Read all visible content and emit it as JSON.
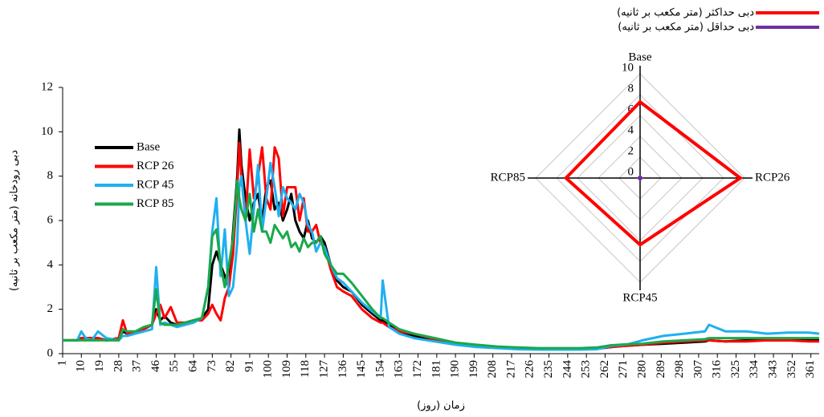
{
  "chart_data": [
    {
      "type": "line",
      "xlabel": "زمان (روز)",
      "ylabel": "دبی رودخانه (متر مکعب بر ثانیه)",
      "x": [
        1,
        8,
        10,
        12,
        15,
        18,
        22,
        28,
        30,
        32,
        36,
        40,
        44,
        46,
        48,
        50,
        53,
        56,
        60,
        64,
        68,
        71,
        73,
        75,
        77,
        79,
        81,
        83,
        85,
        86,
        87,
        89,
        91,
        93,
        95,
        97,
        99,
        101,
        103,
        105,
        107,
        109,
        111,
        113,
        115,
        117,
        119,
        121,
        123,
        125,
        127,
        130,
        133,
        136,
        140,
        145,
        150,
        154,
        155,
        158,
        163,
        170,
        180,
        190,
        200,
        210,
        220,
        230,
        240,
        250,
        258,
        265,
        272,
        280,
        290,
        300,
        310,
        312,
        320,
        330,
        340,
        350,
        360,
        365
      ],
      "xlim": [
        1,
        365
      ],
      "xticks": [
        1,
        10,
        19,
        28,
        37,
        46,
        55,
        64,
        73,
        82,
        91,
        100,
        109,
        118,
        127,
        136,
        145,
        154,
        163,
        172,
        181,
        190,
        199,
        208,
        217,
        226,
        235,
        244,
        253,
        262,
        271,
        280,
        289,
        298,
        307,
        316,
        325,
        334,
        343,
        352,
        361
      ],
      "ylim": [
        0,
        12
      ],
      "yticks": [
        0,
        2,
        4,
        6,
        8,
        10,
        12
      ],
      "grid": false,
      "series": [
        {
          "name": "Base",
          "color": "#000000",
          "values": [
            0.6,
            0.6,
            0.7,
            0.7,
            0.7,
            0.7,
            0.6,
            0.7,
            1.0,
            0.9,
            1.0,
            1.1,
            1.3,
            2.0,
            1.5,
            1.7,
            1.4,
            1.3,
            1.4,
            1.5,
            1.6,
            2.0,
            4.0,
            4.6,
            4.0,
            3.5,
            3.0,
            5.5,
            8.0,
            10.1,
            8.5,
            7.0,
            6.0,
            6.8,
            7.2,
            6.0,
            7.5,
            7.8,
            6.5,
            6.8,
            6.0,
            6.5,
            7.2,
            6.0,
            5.5,
            5.2,
            6.0,
            5.2,
            5.0,
            5.3,
            5.0,
            4.0,
            3.3,
            3.0,
            2.8,
            2.2,
            1.8,
            1.5,
            1.5,
            1.3,
            1.0,
            0.8,
            0.6,
            0.45,
            0.35,
            0.3,
            0.25,
            0.2,
            0.2,
            0.2,
            0.22,
            0.3,
            0.35,
            0.4,
            0.45,
            0.5,
            0.55,
            0.6,
            0.55,
            0.6,
            0.6,
            0.6,
            0.6,
            0.6
          ]
        },
        {
          "name": "RCP 26",
          "color": "#ff0000",
          "values": [
            0.6,
            0.6,
            0.7,
            0.7,
            0.7,
            0.7,
            0.6,
            0.7,
            1.5,
            0.9,
            1.0,
            1.1,
            1.3,
            1.8,
            2.2,
            1.6,
            2.1,
            1.4,
            1.4,
            1.5,
            1.5,
            1.8,
            2.2,
            1.8,
            1.5,
            2.5,
            3.0,
            4.5,
            7.5,
            9.5,
            8.0,
            6.0,
            9.2,
            7.0,
            8.0,
            9.3,
            7.0,
            6.5,
            9.3,
            8.8,
            6.2,
            7.5,
            7.5,
            7.5,
            6.0,
            7.0,
            5.5,
            5.5,
            5.8,
            5.0,
            4.8,
            3.8,
            3.0,
            2.8,
            2.6,
            2.0,
            1.6,
            1.4,
            1.4,
            1.2,
            1.0,
            0.9,
            0.65,
            0.45,
            0.35,
            0.3,
            0.25,
            0.2,
            0.2,
            0.2,
            0.25,
            0.3,
            0.35,
            0.4,
            0.5,
            0.55,
            0.6,
            0.6,
            0.55,
            0.55,
            0.6,
            0.6,
            0.55,
            0.55
          ]
        },
        {
          "name": "RCP 45",
          "color": "#1fb0f0",
          "values": [
            0.6,
            0.6,
            1.0,
            0.7,
            0.6,
            1.0,
            0.7,
            0.6,
            0.8,
            0.8,
            0.9,
            1.0,
            1.1,
            3.9,
            1.3,
            1.4,
            1.3,
            1.2,
            1.3,
            1.4,
            1.6,
            3.0,
            5.5,
            7.0,
            3.5,
            5.6,
            2.6,
            3.0,
            5.0,
            7.5,
            8.0,
            6.0,
            4.5,
            6.5,
            8.5,
            5.5,
            7.0,
            8.6,
            7.5,
            6.2,
            7.5,
            7.0,
            6.8,
            6.5,
            7.2,
            6.8,
            5.8,
            5.5,
            4.6,
            5.0,
            4.8,
            4.0,
            3.4,
            3.2,
            2.8,
            2.3,
            1.9,
            1.6,
            3.3,
            1.2,
            0.9,
            0.7,
            0.55,
            0.4,
            0.3,
            0.25,
            0.2,
            0.18,
            0.18,
            0.18,
            0.2,
            0.35,
            0.4,
            0.6,
            0.8,
            0.9,
            1.0,
            1.3,
            1.0,
            1.0,
            0.9,
            0.95,
            0.95,
            0.9
          ]
        },
        {
          "name": "RCP 85",
          "color": "#1aa84a",
          "values": [
            0.6,
            0.6,
            0.6,
            0.6,
            0.6,
            0.6,
            0.6,
            0.6,
            1.1,
            1.0,
            1.0,
            1.2,
            1.3,
            2.9,
            1.4,
            1.3,
            1.3,
            1.3,
            1.4,
            1.5,
            1.6,
            3.0,
            5.3,
            5.6,
            4.0,
            3.0,
            4.0,
            5.2,
            7.8,
            7.0,
            6.5,
            6.0,
            7.2,
            5.5,
            6.5,
            5.5,
            5.5,
            5.0,
            5.8,
            5.5,
            5.2,
            5.5,
            4.8,
            5.0,
            4.6,
            5.2,
            4.8,
            5.0,
            5.0,
            5.3,
            4.5,
            4.0,
            3.6,
            3.6,
            3.2,
            2.6,
            2.0,
            1.6,
            1.6,
            1.4,
            1.1,
            0.9,
            0.7,
            0.5,
            0.4,
            0.32,
            0.28,
            0.25,
            0.25,
            0.25,
            0.28,
            0.38,
            0.42,
            0.45,
            0.55,
            0.6,
            0.65,
            0.7,
            0.7,
            0.7,
            0.7,
            0.7,
            0.7,
            0.7
          ]
        }
      ]
    },
    {
      "type": "radar",
      "categories": [
        "Base",
        "RCP26",
        "RCP45",
        "RCP85"
      ],
      "rlim": [
        0,
        10
      ],
      "rticks": [
        0,
        2,
        4,
        6,
        8,
        10
      ],
      "series": [
        {
          "name": "دبی حداکثر (متر مکعب بر ثانیه)",
          "color": "#ff0000",
          "values": [
            7.3,
            9.6,
            6.4,
            7.1
          ]
        },
        {
          "name": "دبی حداقل (متر مکعب بر ثانیه)",
          "color": "#7030a0",
          "values": [
            0.1,
            0.1,
            0.1,
            0.1
          ]
        }
      ]
    }
  ]
}
